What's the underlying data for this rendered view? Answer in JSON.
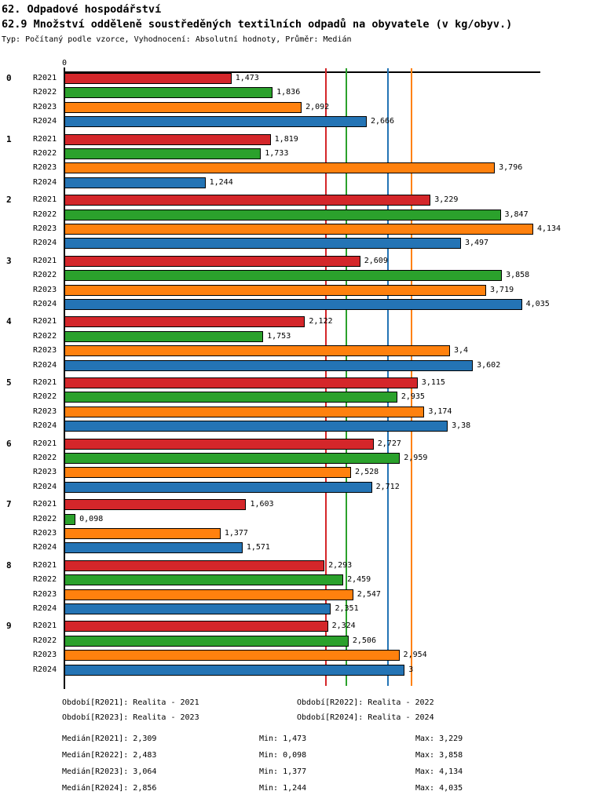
{
  "header": {
    "title": "62. Odpadové hospodářství",
    "subtitle": "62.9 Množství odděleně soustředěných textilních odpadů na obyvatele (v kg/obyv.)",
    "meta": "Typ: Počítaný podle vzorce, Vyhodnocení: Absolutní hodnoty, Průměr: Medián"
  },
  "chart_data": {
    "type": "bar",
    "orientation": "horizontal",
    "title": "62.9 Množství odděleně soustředěných textilních odpadů na obyvatele (v kg/obyv.)",
    "categories": [
      "0",
      "1",
      "2",
      "3",
      "4",
      "5",
      "6",
      "7",
      "8",
      "9"
    ],
    "series": [
      {
        "name": "R2021",
        "color": "#d4262a",
        "values": [
          1.473,
          1.819,
          3.229,
          2.609,
          2.122,
          3.115,
          2.727,
          1.603,
          2.293,
          2.324
        ],
        "labels": [
          "1,473",
          "1,819",
          "3,229",
          "2,609",
          "2,122",
          "3,115",
          "2,727",
          "1,603",
          "2,293",
          "2,324"
        ]
      },
      {
        "name": "R2022",
        "color": "#2ba12c",
        "values": [
          1.836,
          1.733,
          3.847,
          3.858,
          1.753,
          2.935,
          2.959,
          0.098,
          2.459,
          2.506
        ],
        "labels": [
          "1,836",
          "1,733",
          "3,847",
          "3,858",
          "1,753",
          "2,935",
          "2,959",
          "0,098",
          "2,459",
          "2,506"
        ]
      },
      {
        "name": "R2023",
        "color": "#ff810e",
        "values": [
          2.092,
          3.796,
          4.134,
          3.719,
          3.4,
          3.174,
          2.528,
          1.377,
          2.547,
          2.954
        ],
        "labels": [
          "2,092",
          "3,796",
          "4,134",
          "3,719",
          "3,4",
          "3,174",
          "2,528",
          "1,377",
          "2,547",
          "2,954"
        ]
      },
      {
        "name": "R2024",
        "color": "#2474b5",
        "values": [
          2.666,
          1.244,
          3.497,
          4.035,
          3.602,
          3.38,
          2.712,
          1.571,
          2.351,
          3
        ],
        "labels": [
          "2,666",
          "1,244",
          "3,497",
          "4,035",
          "3,602",
          "3,38",
          "2,712",
          "1,571",
          "2,351",
          "3"
        ]
      }
    ],
    "reference_lines": [
      {
        "label": "Medián[R2021]",
        "value": 2.309,
        "color": "#d4262a"
      },
      {
        "label": "Medián[R2022]",
        "value": 2.483,
        "color": "#2ba12c"
      },
      {
        "label": "Medián[R2023]",
        "value": 3.064,
        "color": "#ff810e"
      },
      {
        "label": "Medián[R2024]",
        "value": 2.856,
        "color": "#2474b5"
      }
    ],
    "axis": {
      "origin_label": "0",
      "xlim": [
        0,
        4.19
      ],
      "grid": false,
      "legend_position": "bottom"
    }
  },
  "legend": {
    "entries": [
      "Období[R2021]: Realita - 2021",
      "Období[R2022]: Realita - 2022",
      "Období[R2023]: Realita - 2023",
      "Období[R2024]: Realita - 2024"
    ]
  },
  "stats": {
    "rows": [
      {
        "median": "Medián[R2021]: 2,309",
        "min": "Min: 1,473",
        "max": "Max: 3,229"
      },
      {
        "median": "Medián[R2022]: 2,483",
        "min": "Min: 0,098",
        "max": "Max: 3,858"
      },
      {
        "median": "Medián[R2023]: 3,064",
        "min": "Min: 1,377",
        "max": "Max: 4,134"
      },
      {
        "median": "Medián[R2024]: 2,856",
        "min": "Min: 1,244",
        "max": "Max: 4,035"
      }
    ]
  }
}
